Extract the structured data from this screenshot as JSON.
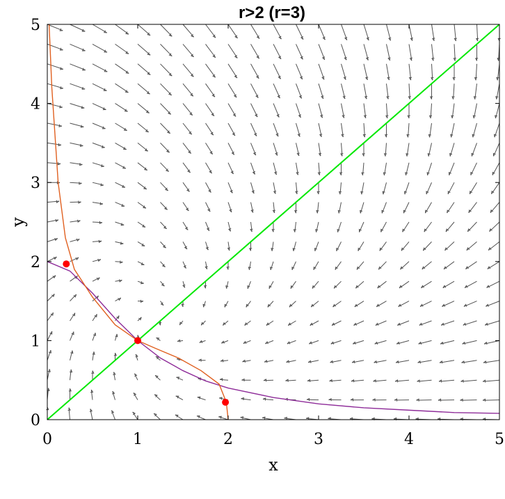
{
  "chart_data": {
    "type": "line",
    "title": "r>2   (r=3)",
    "xlabel": "x",
    "ylabel": "y",
    "xlim": [
      0,
      5
    ],
    "ylim": [
      0,
      5
    ],
    "xticks": [
      "0",
      "1",
      "2",
      "3",
      "4",
      "5"
    ],
    "yticks": [
      "0",
      "1",
      "2",
      "3",
      "4",
      "5"
    ],
    "grid": false,
    "parameter_r": 3,
    "vector_field": {
      "dx": "y - x",
      "dy": "r/(1+x^2) - y"
    },
    "series": [
      {
        "color": "#8e2c99",
        "x": [
          0,
          0.25,
          0.5,
          0.75,
          1,
          1.25,
          1.5,
          1.75,
          2,
          2.5,
          3,
          3.5,
          4,
          4.5,
          5
        ],
        "y": [
          2.0,
          1.88,
          1.6,
          1.28,
          1.0,
          0.78,
          0.62,
          0.49,
          0.4,
          0.28,
          0.2,
          0.15,
          0.12,
          0.09,
          0.08
        ]
      },
      {
        "color": "#e06020",
        "x": [
          2.0,
          1.98,
          1.9,
          1.7,
          1.45,
          1.2,
          1.0,
          0.75,
          0.5,
          0.3,
          0.2,
          0.12,
          0.05,
          0.02
        ],
        "y": [
          0.0,
          0.22,
          0.45,
          0.62,
          0.78,
          0.9,
          1.0,
          1.2,
          1.55,
          1.9,
          2.3,
          3.0,
          4.2,
          5.0
        ]
      },
      {
        "color": "#00e800",
        "x": [
          0,
          5
        ],
        "y": [
          0,
          5
        ]
      }
    ],
    "points": [
      {
        "x": 0.21,
        "y": 1.97,
        "color": "#ff0000"
      },
      {
        "x": 1.0,
        "y": 1.0,
        "color": "#ff0000"
      },
      {
        "x": 1.97,
        "y": 0.22,
        "color": "#ff0000"
      }
    ],
    "arrow_color": "#505050"
  }
}
